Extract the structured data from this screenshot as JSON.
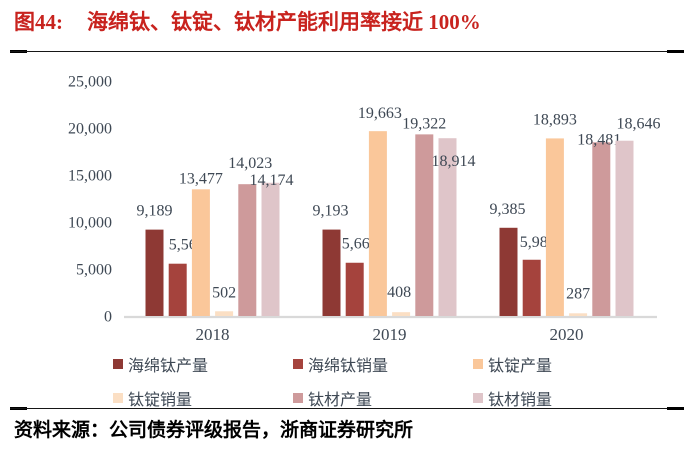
{
  "title": {
    "figure_label": "图44:",
    "text": "海绵钛、钛锭、钛材产能利用率接近 100%"
  },
  "source": "资料来源：公司债券评级报告，浙商证券研究所",
  "title_color": "#C8231E",
  "text_color": "#3E4854",
  "axis_line_color": "#D9D9D9",
  "chart_data": {
    "type": "bar",
    "categories": [
      "2018",
      "2019",
      "2020"
    ],
    "series": [
      {
        "name": "海绵钛产量",
        "color": "#8E3934",
        "values": [
          9189,
          9193,
          9385
        ]
      },
      {
        "name": "海绵钛销量",
        "color": "#A5433D",
        "values": [
          5564,
          5665,
          5984
        ]
      },
      {
        "name": "钛锭产量",
        "color": "#FAC79A",
        "values": [
          13477,
          19663,
          18893
        ]
      },
      {
        "name": "钛锭销量",
        "color": "#FBDFC4",
        "values": [
          502,
          408,
          287
        ]
      },
      {
        "name": "钛材产量",
        "color": "#CE9A9B",
        "values": [
          14023,
          19322,
          18481
        ]
      },
      {
        "name": "钛材销量",
        "color": "#DFC5C9",
        "values": [
          14174,
          18914,
          18646
        ]
      }
    ],
    "ylim": [
      0,
      25000
    ],
    "ytick_step": 5000,
    "y_tick_labels": [
      "0",
      "5,000",
      "10,000",
      "15,000",
      "20,000",
      "25,000"
    ],
    "grid": false,
    "data_labels": true,
    "legend_position": "bottom",
    "legend_rows": [
      [
        "海绵钛产量",
        "海绵钛销量",
        "钛锭产量"
      ],
      [
        "钛锭销量",
        "钛材产量",
        "钛材销量"
      ]
    ]
  }
}
